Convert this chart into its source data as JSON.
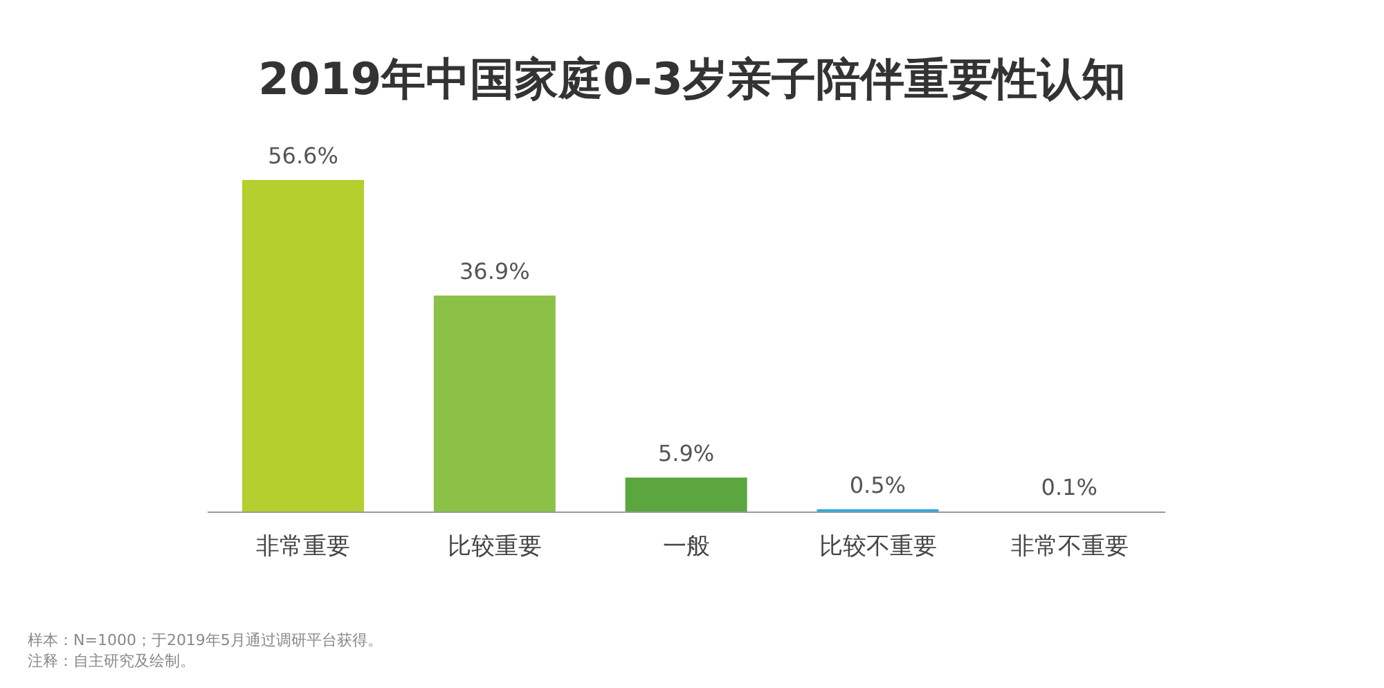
{
  "chart_data": {
    "type": "bar",
    "title": "2019年中国家庭0-3岁亲子陪伴重要性认知",
    "categories": [
      "非常重要",
      "比较重要",
      "一般",
      "比较不重要",
      "非常不重要"
    ],
    "values": [
      56.6,
      36.9,
      5.9,
      0.5,
      0.1
    ],
    "value_labels": [
      "56.6%",
      "36.9%",
      "5.9%",
      "0.5%",
      "0.1%"
    ],
    "colors": [
      "#b5cf2f",
      "#8bc146",
      "#5ba63f",
      "#29a8e0",
      "#a0a0b0"
    ],
    "grid": false,
    "annotations": [
      "样本：N=1000；于2019年5月通过调研平台获得。",
      "注释：自主研究及绘制。"
    ]
  }
}
